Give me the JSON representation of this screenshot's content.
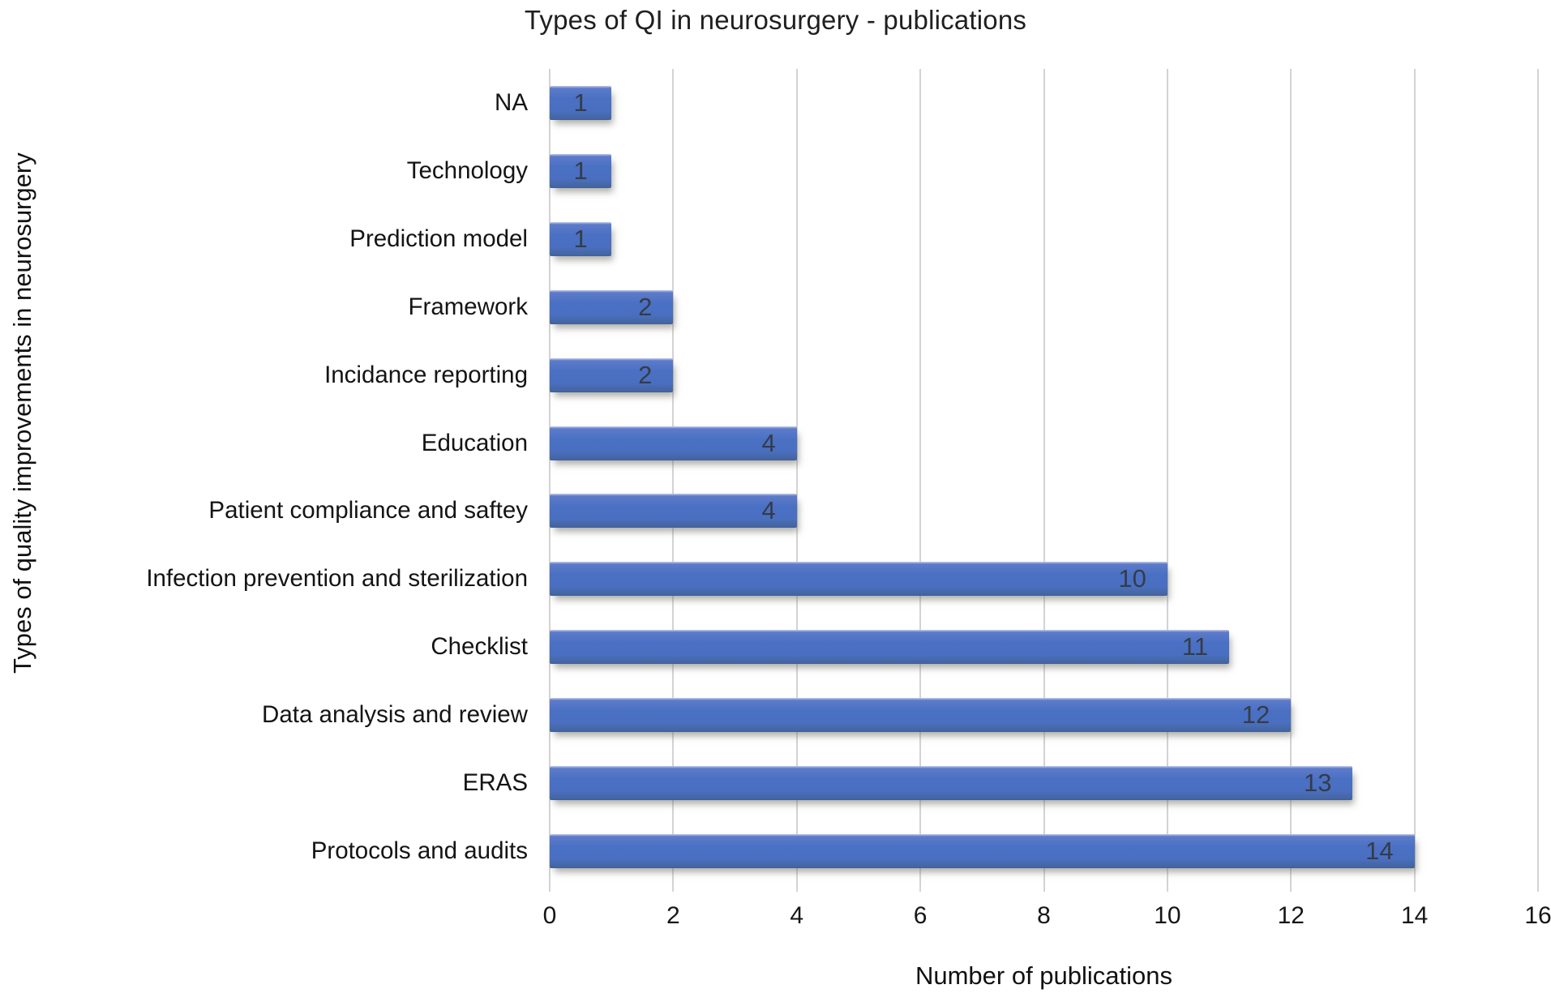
{
  "chart_data": {
    "type": "bar",
    "orientation": "horizontal",
    "title": "Types of QI in neurosurgery - publications",
    "xlabel": "Number of publications",
    "ylabel": "Types of quality improvements in neurosurgery",
    "categories": [
      "NA",
      "Technology",
      "Prediction model",
      "Framework",
      "Incidance reporting",
      "Education",
      "Patient compliance and saftey",
      "Infection prevention and sterilization",
      "Checklist",
      "Data analysis and review",
      "ERAS",
      "Protocols and audits"
    ],
    "values": [
      1,
      1,
      1,
      2,
      2,
      4,
      4,
      10,
      11,
      12,
      13,
      14
    ],
    "xlim": [
      0,
      16
    ],
    "xticks": [
      0,
      2,
      4,
      6,
      8,
      10,
      12,
      14,
      16
    ],
    "grid": "vertical",
    "legend": "none",
    "value_labels": "inside-end",
    "colors": {
      "bar_main": "#4a70c4",
      "bar_top_edge": "#c3cbe9",
      "bar_bottom_edge": "#3f5d9b",
      "value_label": "#353c47",
      "gridline": "#d3d3d3",
      "text": "#111111",
      "background": "#ffffff"
    }
  }
}
